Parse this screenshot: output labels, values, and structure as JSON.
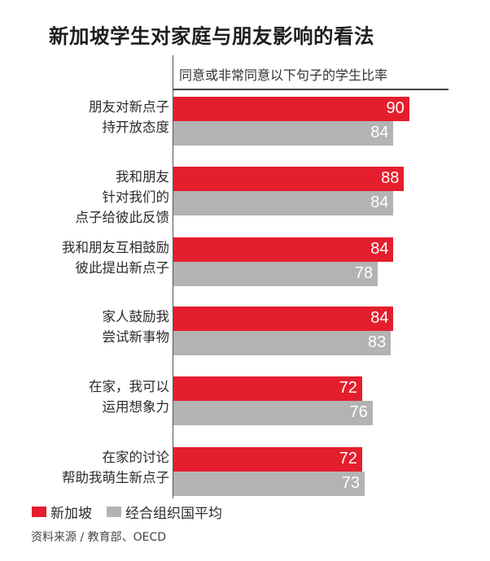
{
  "title": "新加坡学生对家庭与朋友影响的看法",
  "subtitle": "同意或非常同意以下句子的学生比率",
  "colors": {
    "singapore": "#e41e2d",
    "oecd": "#b3b3b3"
  },
  "legend": [
    {
      "label": "新加坡",
      "color": "#e41e2d"
    },
    {
      "label": "经合组织国平均",
      "color": "#b3b3b3"
    }
  ],
  "source": "资料来源 / 教育部、OECD",
  "groups": [
    {
      "label_lines": [
        "朋友对新点子",
        "持开放态度"
      ],
      "singapore": "90",
      "oecd": "84"
    },
    {
      "label_lines": [
        "我和朋友",
        "针对我们的",
        "点子给彼此反馈"
      ],
      "singapore": "88",
      "oecd": "84"
    },
    {
      "label_lines": [
        "我和朋友互相鼓励",
        "彼此提出新点子"
      ],
      "singapore": "84",
      "oecd": "78"
    },
    {
      "label_lines": [
        "家人鼓励我",
        "尝试新事物"
      ],
      "singapore": "84",
      "oecd": "83"
    },
    {
      "label_lines": [
        "在家，我可以",
        "运用想象力"
      ],
      "singapore": "72",
      "oecd": "76"
    },
    {
      "label_lines": [
        "在家的讨论",
        "帮助我萌生新点子"
      ],
      "singapore": "72",
      "oecd": "73"
    }
  ],
  "chart_data": {
    "type": "bar",
    "orientation": "horizontal",
    "title": "新加坡学生对家庭与朋友影响的看法",
    "subtitle": "同意或非常同意以下句子的学生比率",
    "xlabel": "同意或非常同意以下句子的学生比率 (%)",
    "ylabel": "",
    "categories": [
      "朋友对新点子持开放态度",
      "我和朋友针对我们的点子给彼此反馈",
      "我和朋友互相鼓励彼此提出新点子",
      "家人鼓励我尝试新事物",
      "在家，我可以运用想象力",
      "在家的讨论帮助我萌生新点子"
    ],
    "series": [
      {
        "name": "新加坡",
        "color": "#e41e2d",
        "values": [
          90,
          88,
          84,
          84,
          72,
          72
        ]
      },
      {
        "name": "经合组织国平均",
        "color": "#b3b3b3",
        "values": [
          84,
          84,
          78,
          83,
          76,
          73
        ]
      }
    ],
    "xlim": [
      0,
      100
    ],
    "grid": false,
    "data_labels": true,
    "legend_position": "bottom-left",
    "annotations": [
      "资料来源 / 教育部、OECD"
    ]
  }
}
